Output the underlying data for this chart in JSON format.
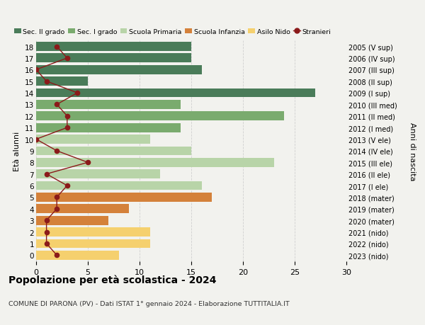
{
  "ages": [
    18,
    17,
    16,
    15,
    14,
    13,
    12,
    11,
    10,
    9,
    8,
    7,
    6,
    5,
    4,
    3,
    2,
    1,
    0
  ],
  "years": [
    "2005 (V sup)",
    "2006 (IV sup)",
    "2007 (III sup)",
    "2008 (II sup)",
    "2009 (I sup)",
    "2010 (III med)",
    "2011 (II med)",
    "2012 (I med)",
    "2013 (V ele)",
    "2014 (IV ele)",
    "2015 (III ele)",
    "2016 (II ele)",
    "2017 (I ele)",
    "2018 (mater)",
    "2019 (mater)",
    "2020 (mater)",
    "2021 (nido)",
    "2022 (nido)",
    "2023 (nido)"
  ],
  "bar_values": [
    15,
    15,
    16,
    5,
    27,
    14,
    24,
    14,
    11,
    15,
    23,
    12,
    16,
    17,
    9,
    7,
    11,
    11,
    8
  ],
  "stranieri": [
    2,
    3,
    0,
    1,
    4,
    2,
    3,
    3,
    0,
    2,
    5,
    1,
    3,
    2,
    2,
    1,
    1,
    1,
    2
  ],
  "bar_colors": [
    "#4a7c59",
    "#4a7c59",
    "#4a7c59",
    "#4a7c59",
    "#4a7c59",
    "#7aab6e",
    "#7aab6e",
    "#7aab6e",
    "#b8d4a8",
    "#b8d4a8",
    "#b8d4a8",
    "#b8d4a8",
    "#b8d4a8",
    "#d4813a",
    "#d4813a",
    "#d4813a",
    "#f5d06e",
    "#f5d06e",
    "#f5d06e"
  ],
  "legend_labels": [
    "Sec. II grado",
    "Sec. I grado",
    "Scuola Primaria",
    "Scuola Infanzia",
    "Asilo Nido",
    "Stranieri"
  ],
  "legend_colors": [
    "#4a7c59",
    "#7aab6e",
    "#b8d4a8",
    "#d4813a",
    "#f5d06e",
    "#8b1a1a"
  ],
  "title": "Popolazione per età scolastica - 2024",
  "subtitle": "COMUNE DI PARONA (PV) - Dati ISTAT 1° gennaio 2024 - Elaborazione TUTTITALIA.IT",
  "ylabel_left": "Età alunni",
  "ylabel_right": "Anni di nascita",
  "xlim": [
    0,
    30
  ],
  "xticks": [
    0,
    5,
    10,
    15,
    20,
    25,
    30
  ],
  "background_color": "#f2f2ee",
  "grid_color": "#d0d0d0",
  "stranieri_color": "#8b1a1a",
  "stranieri_line_color": "#8b1a1a"
}
